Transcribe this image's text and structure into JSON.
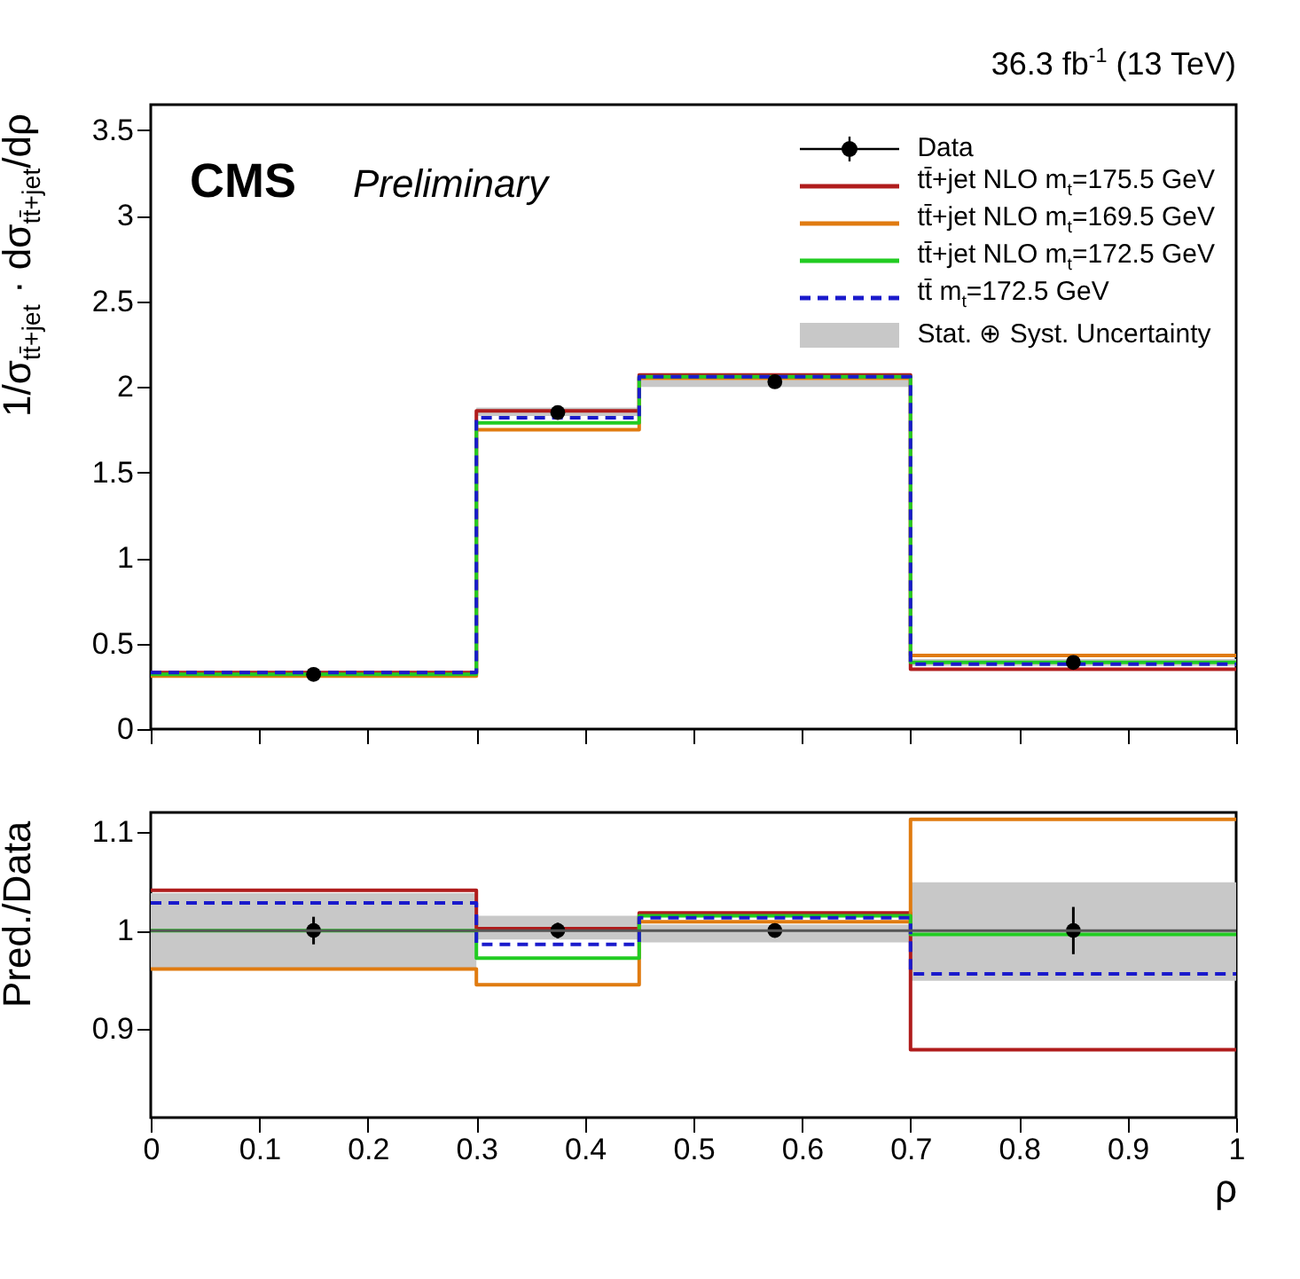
{
  "chart_data": [
    {
      "type": "step",
      "subtitle": "36.3 fb$^{-1}$ (13 TeV)",
      "ylabel": "1/σ$_{tt̄+jet}$ · dσ$_{tt̄+jet}$/dρ",
      "annotations": [
        "CMS",
        "Preliminary"
      ],
      "xlim": [
        0,
        1
      ],
      "ylim": [
        0,
        3.65
      ],
      "yticks": [
        0,
        0.5,
        1,
        1.5,
        2,
        2.5,
        3,
        3.5
      ],
      "tick_labels": "y",
      "legend": "top right",
      "series": [
        {
          "name": "Stat. ⊕ Syst. Uncertainty",
          "color": "#c8c8c8",
          "x": [
            0,
            0.3,
            0.45,
            0.7,
            1
          ],
          "values": [
            null,
            null,
            null,
            null,
            null
          ],
          "lower": [
            0.31,
            1.83,
            2.0,
            0.37,
            0.37
          ],
          "upper": [
            0.33,
            1.88,
            2.04,
            0.41,
            0.41
          ]
        },
        {
          "name": "tt̄+jet NLO m$_{t}$=175.5 GeV",
          "color": "#b01c1c",
          "x": [
            0,
            0.3,
            0.45,
            0.7,
            1
          ],
          "values": [
            0.33,
            1.86,
            2.07,
            0.35,
            0.35
          ]
        },
        {
          "name": "tt̄+jet NLO m$_{t}$=169.5 GeV",
          "color": "#e07b10",
          "x": [
            0,
            0.3,
            0.45,
            0.7,
            1
          ],
          "values": [
            0.31,
            1.75,
            2.05,
            0.43,
            0.43
          ]
        },
        {
          "name": "tt̄+jet NLO m$_{t}$=172.5 GeV",
          "color": "#22cc22",
          "x": [
            0,
            0.3,
            0.45,
            0.7,
            1
          ],
          "values": [
            0.32,
            1.79,
            2.06,
            0.39,
            0.39
          ]
        },
        {
          "name": "tt̄ m$_{t}$=172.5 GeV",
          "color": "#1a1acc",
          "line_style": "dashed",
          "x": [
            0,
            0.3,
            0.45,
            0.7,
            1
          ],
          "values": [
            0.33,
            1.82,
            2.06,
            0.38,
            0.38
          ]
        },
        {
          "name": "Data",
          "type": "scatter",
          "color": "#000000",
          "marker": "circle",
          "x": [
            0.15,
            0.375,
            0.575,
            0.85
          ],
          "values": [
            0.32,
            1.85,
            2.03,
            0.39
          ],
          "errors": [
            0.01,
            0.02,
            0.01,
            0.01
          ]
        }
      ]
    },
    {
      "type": "step",
      "xlabel": "ρ",
      "ylabel": "Pred./Data",
      "xlim": [
        0,
        1
      ],
      "xticks": [
        0,
        0.1,
        0.2,
        0.3,
        0.4,
        0.5,
        0.6,
        0.7,
        0.8,
        0.9,
        1
      ],
      "ylim": [
        0.81,
        1.12
      ],
      "yticks": [
        0.9,
        1,
        1.1
      ],
      "ref_lines": [
        {
          "axis": "y",
          "value": 1,
          "color": "#555555"
        }
      ],
      "series": [
        {
          "color": "#c8c8c8",
          "x": [
            0,
            0.3,
            0.45,
            0.7,
            1
          ],
          "values": [
            null,
            null,
            null,
            null,
            null
          ],
          "lower": [
            0.961,
            0.991,
            0.988,
            0.949,
            0.949
          ],
          "upper": [
            1.038,
            1.015,
            1.006,
            1.049,
            1.049
          ]
        },
        {
          "color": "#b01c1c",
          "x": [
            0,
            0.3,
            0.45,
            0.7,
            1
          ],
          "values": [
            1.041,
            1.002,
            1.018,
            0.879,
            0.879
          ]
        },
        {
          "color": "#e07b10",
          "x": [
            0,
            0.3,
            0.45,
            0.7,
            1
          ],
          "values": [
            0.961,
            0.945,
            1.009,
            1.113,
            1.113
          ]
        },
        {
          "color": "#22cc22",
          "x": [
            0,
            0.3,
            0.45,
            0.7,
            1
          ],
          "values": [
            1.0,
            0.972,
            1.015,
            0.996,
            0.996
          ]
        },
        {
          "color": "#1a1acc",
          "line_style": "dashed",
          "x": [
            0,
            0.3,
            0.45,
            0.7,
            1
          ],
          "values": [
            1.028,
            0.986,
            1.013,
            0.956,
            0.956
          ]
        },
        {
          "type": "scatter",
          "color": "#000000",
          "marker": "circle",
          "x": [
            0.15,
            0.375,
            0.575,
            0.85
          ],
          "values": [
            1.0,
            1.0,
            1.0,
            1.0
          ],
          "errors": [
            0.014,
            0.008,
            0.004,
            0.024
          ]
        }
      ]
    }
  ]
}
